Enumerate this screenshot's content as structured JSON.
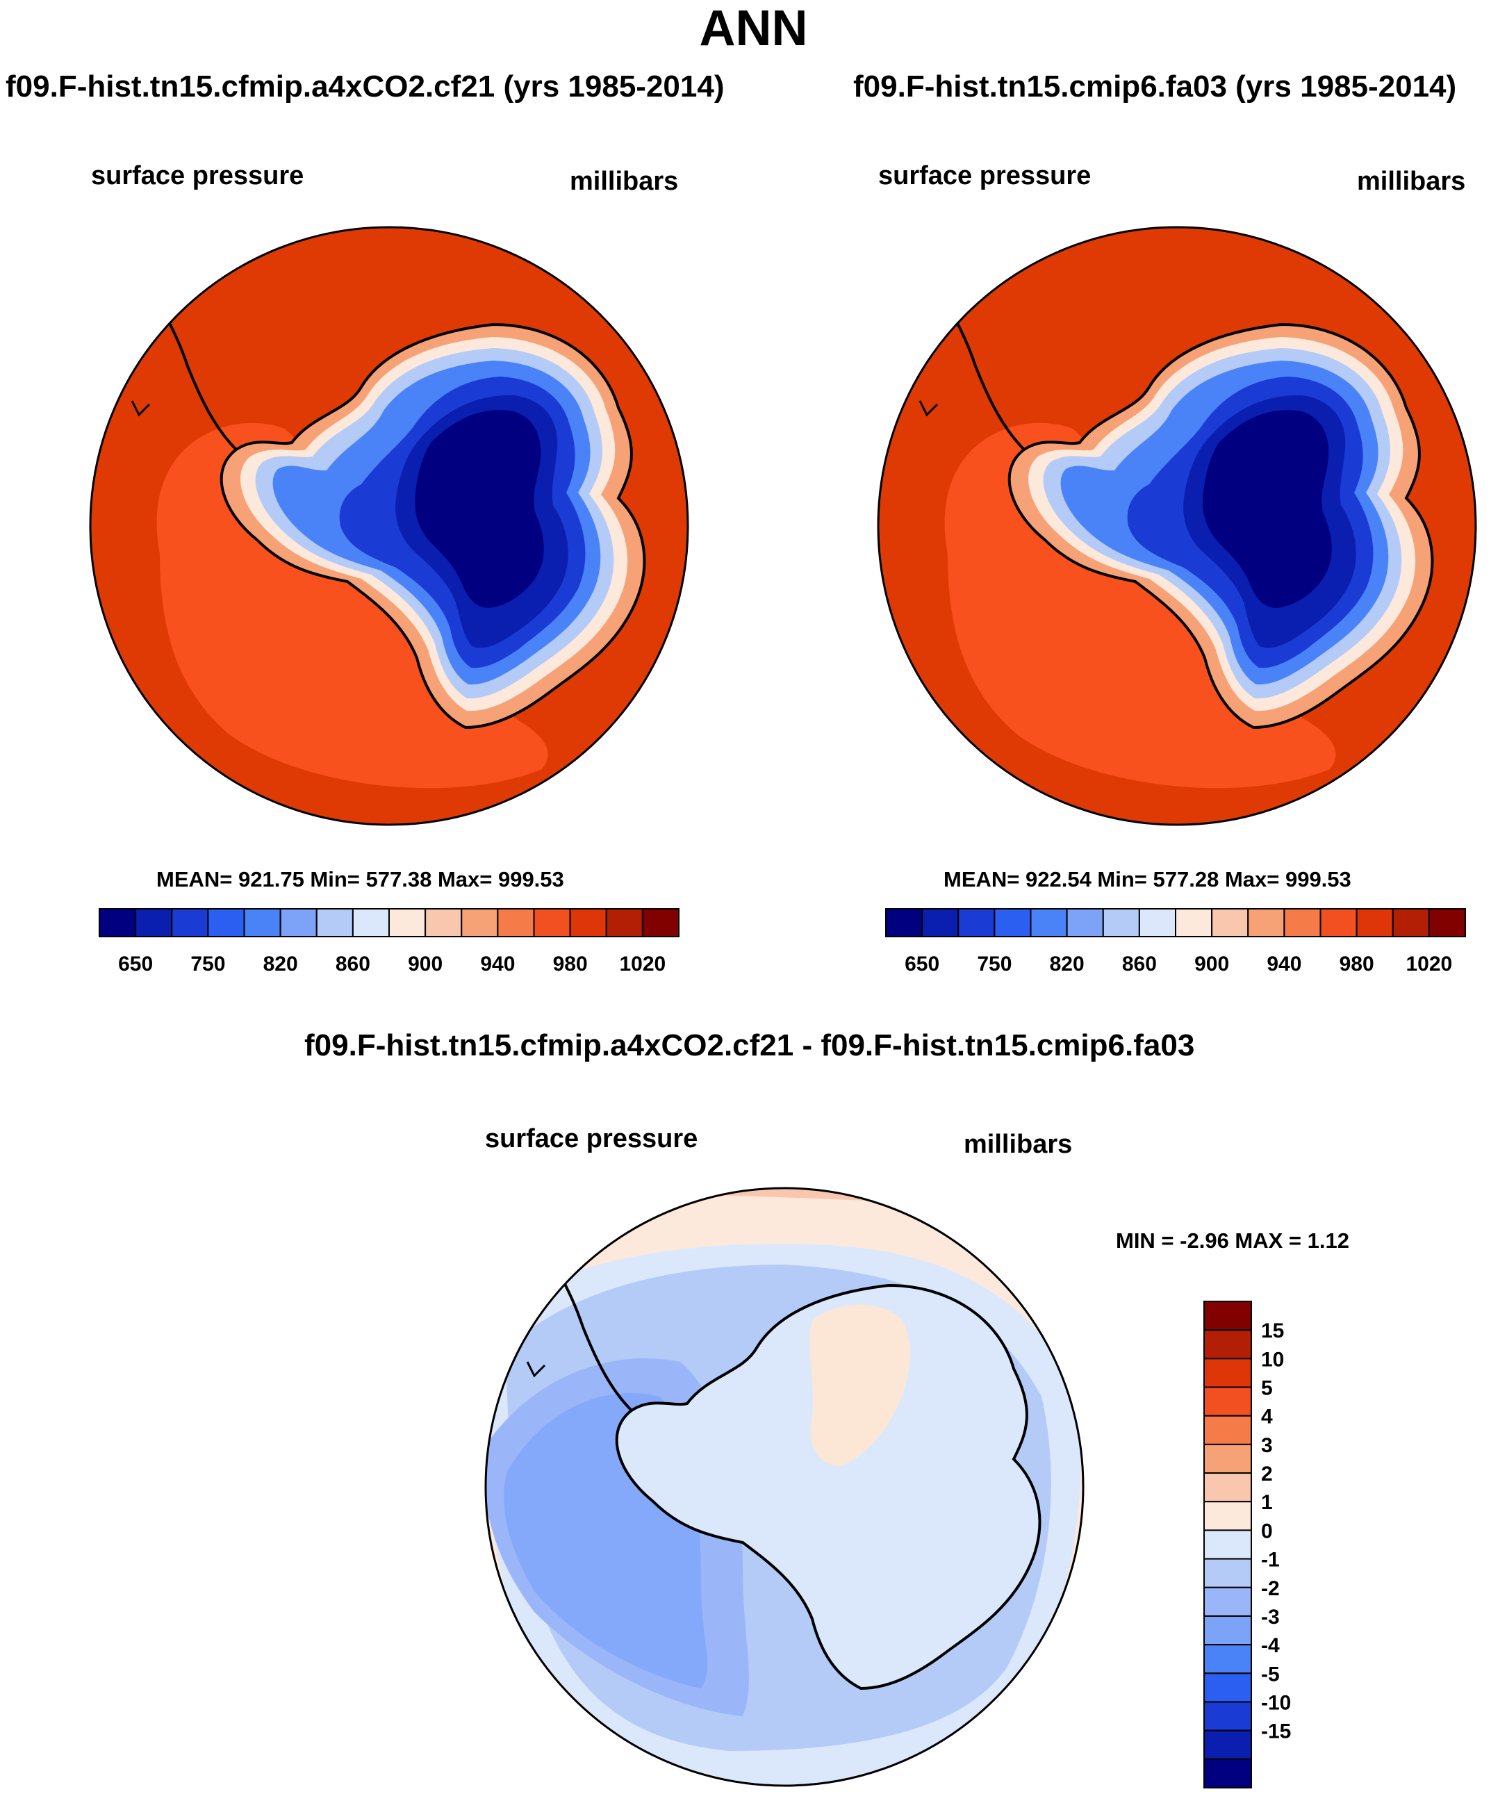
{
  "figure": {
    "title": "ANN"
  },
  "panels": [
    {
      "case_title": "f09.F-hist.tn15.cfmip.a4xCO2.cf21 (yrs 1985-2014)",
      "variable": "surface pressure",
      "units": "millibars",
      "stats": "MEAN= 921.75  Min= 577.38  Max= 999.53"
    },
    {
      "case_title": "f09.F-hist.tn15.cmip6.fa03 (yrs 1985-2014)",
      "variable": "surface pressure",
      "units": "millibars",
      "stats": "MEAN= 922.54  Min= 577.28  Max= 999.53"
    }
  ],
  "difference_panel": {
    "title": "f09.F-hist.tn15.cfmip.a4xCO2.cf21 - f09.F-hist.tn15.cmip6.fa03",
    "variable": "surface pressure",
    "units": "millibars",
    "stats": "MIN =  -2.96 MAX =   1.12"
  },
  "chart_data": [
    {
      "type": "heatmap",
      "projection": "south-polar-stereographic",
      "title": "f09.F-hist.tn15.cfmip.a4xCO2.cf21 (yrs 1985-2014)",
      "variable": "surface pressure",
      "units": "millibars",
      "mean": 921.75,
      "min": 577.38,
      "max": 999.53,
      "colorbar": {
        "orientation": "horizontal",
        "levels": [
          650,
          700,
          750,
          800,
          820,
          840,
          860,
          880,
          900,
          920,
          940,
          960,
          980,
          1000,
          1020
        ],
        "tick_labels": [
          "650",
          "750",
          "820",
          "860",
          "900",
          "940",
          "980",
          "1020"
        ],
        "colors": [
          "#000080",
          "#0a1fb0",
          "#1b3cd4",
          "#2a5ff2",
          "#4a82f7",
          "#7ca3f8",
          "#b4cbf8",
          "#dbe8fb",
          "#fce9dc",
          "#f9c7ad",
          "#f7a176",
          "#f57b49",
          "#f25021",
          "#de3608",
          "#b31f05",
          "#810000"
        ]
      }
    },
    {
      "type": "heatmap",
      "projection": "south-polar-stereographic",
      "title": "f09.F-hist.tn15.cmip6.fa03 (yrs 1985-2014)",
      "variable": "surface pressure",
      "units": "millibars",
      "mean": 922.54,
      "min": 577.28,
      "max": 999.53,
      "colorbar": {
        "orientation": "horizontal",
        "levels": [
          650,
          700,
          750,
          800,
          820,
          840,
          860,
          880,
          900,
          920,
          940,
          960,
          980,
          1000,
          1020
        ],
        "tick_labels": [
          "650",
          "750",
          "820",
          "860",
          "900",
          "940",
          "980",
          "1020"
        ],
        "colors": [
          "#000080",
          "#0a1fb0",
          "#1b3cd4",
          "#2a5ff2",
          "#4a82f7",
          "#7ca3f8",
          "#b4cbf8",
          "#dbe8fb",
          "#fce9dc",
          "#f9c7ad",
          "#f7a176",
          "#f57b49",
          "#f25021",
          "#de3608",
          "#b31f05",
          "#810000"
        ]
      }
    },
    {
      "type": "heatmap",
      "projection": "south-polar-stereographic",
      "title": "f09.F-hist.tn15.cfmip.a4xCO2.cf21 - f09.F-hist.tn15.cmip6.fa03",
      "variable": "surface pressure",
      "units": "millibars",
      "min": -2.96,
      "max": 1.12,
      "colorbar": {
        "orientation": "vertical",
        "tick_labels": [
          "15",
          "10",
          "5",
          "4",
          "3",
          "2",
          "1",
          "0",
          "-1",
          "-2",
          "-3",
          "-4",
          "-5",
          "-10",
          "-15"
        ],
        "colors": [
          "#810000",
          "#b31f05",
          "#de3608",
          "#f25021",
          "#f57b49",
          "#f7a176",
          "#f9c7ad",
          "#fce9dc",
          "#dbe8fb",
          "#b4cbf8",
          "#9ab5f8",
          "#7ca3f8",
          "#4a82f7",
          "#2a5ff2",
          "#1b3cd4",
          "#0a1fb0",
          "#000080"
        ]
      }
    }
  ],
  "map_colors": {
    "ocean_high": "#e03a04",
    "ocean_mid": "#f9511d",
    "coast_light": "#f7a176",
    "coast_pale": "#fce9dc",
    "ice_pale": "#b4cbf8",
    "ice_mid": "#4a82f7",
    "ice_blue": "#1b3cd4",
    "ice_deep": "#0a1fb0",
    "ice_core": "#000080",
    "diff_outer": "#fce9dc",
    "diff_edge": "#f9c7ad",
    "diff_light": "#dbe8fb",
    "diff_mid": "#b4cbf8",
    "diff_blue": "#9ab5f8",
    "diff_deep": "#84a8fa",
    "diff_pos": "#fce6d6"
  }
}
